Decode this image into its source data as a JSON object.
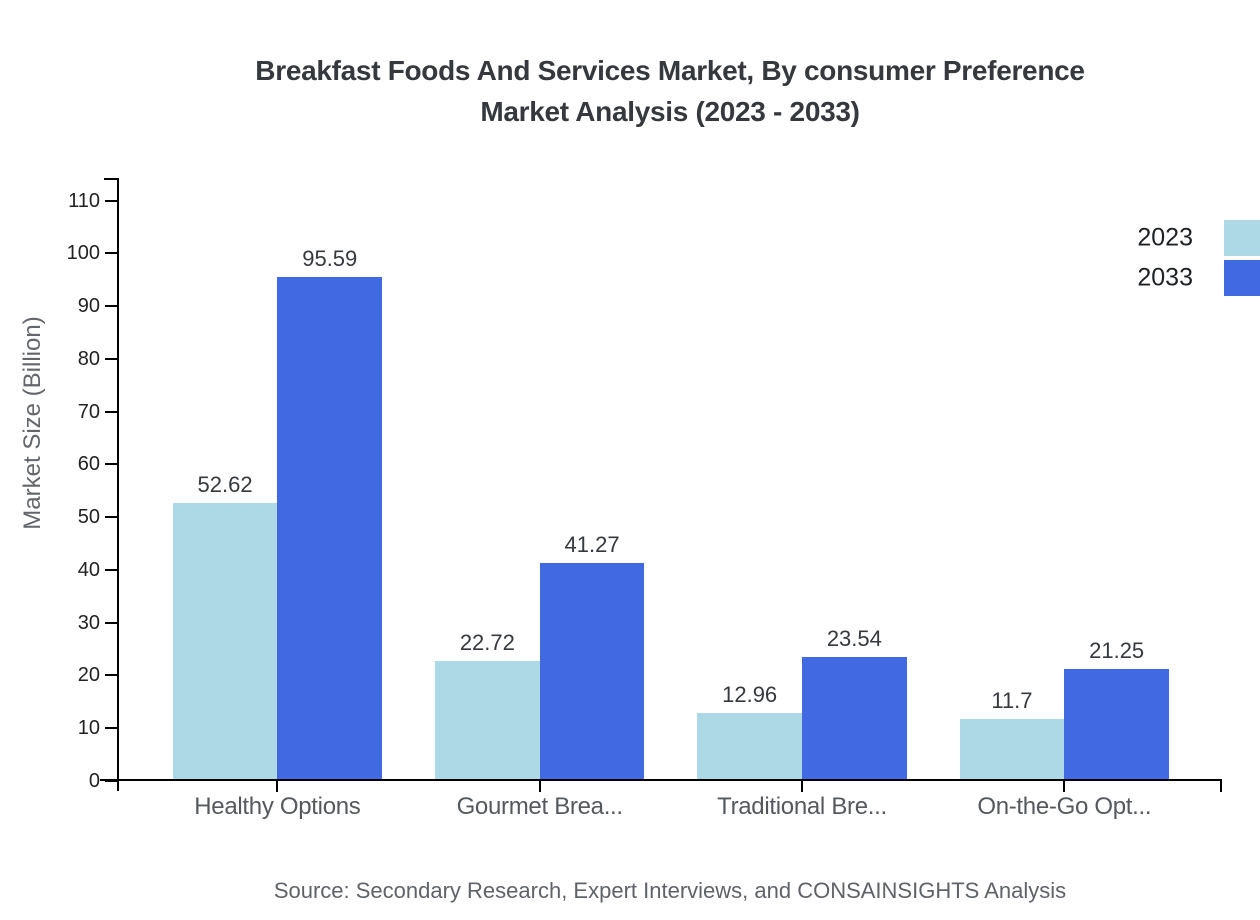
{
  "title": {
    "line1": "Breakfast Foods And Services Market, By consumer Preference",
    "line2": "Market Analysis (2023 - 2033)"
  },
  "chart_data": {
    "type": "bar",
    "categories": [
      "Healthy Options",
      "Gourmet Brea...",
      "Traditional Bre...",
      "On-the-Go Opt..."
    ],
    "series": [
      {
        "name": "2023",
        "color": "#ADD8E6",
        "values": [
          52.62,
          22.72,
          12.96,
          11.7
        ]
      },
      {
        "name": "2033",
        "color": "#4169E1",
        "values": [
          95.59,
          41.27,
          23.54,
          21.25
        ]
      }
    ],
    "ylabel": "Market Size (Billion)",
    "xlabel": "",
    "ylim": [
      0,
      110
    ],
    "yticks": [
      0,
      10,
      20,
      30,
      40,
      50,
      60,
      70,
      80,
      90,
      100,
      110
    ],
    "grid": false,
    "legend_position": "top-right",
    "bar_value_labels": true
  },
  "source_note": "Source: Secondary Research, Expert Interviews, and CONSAINSIGHTS Analysis",
  "colors": {
    "series_2023": "#ADD8E6",
    "series_2033": "#4169E1",
    "axis": "#000000",
    "title_text": "#35393d",
    "tick_label": "#222222",
    "category_label": "#55595e",
    "muted_text": "#5f6368"
  }
}
